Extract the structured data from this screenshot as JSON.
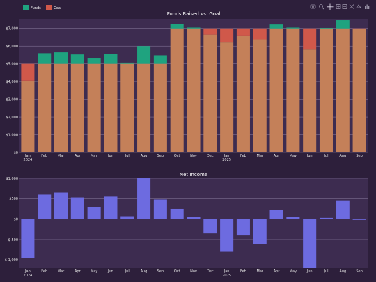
{
  "chart_data": [
    {
      "type": "bar",
      "title": "Funds Raised vs. Goal",
      "categories": [
        "Jan 2024",
        "Feb",
        "Mar",
        "Apr",
        "May",
        "Jun",
        "Jul",
        "Aug",
        "Sep",
        "Oct",
        "Nov",
        "Dec",
        "Jan 2025",
        "Feb",
        "Mar",
        "Apr",
        "May",
        "Jun",
        "Jul",
        "Aug",
        "Sep"
      ],
      "series": [
        {
          "name": "Funds",
          "color": "#1fa37f",
          "values": [
            4050,
            5600,
            5650,
            5530,
            5300,
            5550,
            5070,
            6000,
            5480,
            7250,
            7050,
            6650,
            6200,
            6600,
            6380,
            7220,
            7050,
            5800,
            7030,
            7460,
            6980
          ]
        },
        {
          "name": "Goal",
          "color": "#d0584a",
          "values": [
            5000,
            5000,
            5000,
            5000,
            5000,
            5000,
            5000,
            5000,
            5000,
            7000,
            7000,
            7000,
            7000,
            7000,
            7000,
            7000,
            7000,
            7000,
            7000,
            7000,
            7000
          ]
        }
      ],
      "overlap_color": "#c48059",
      "ylim": [
        0,
        7500
      ],
      "yticks": [
        0,
        1000,
        2000,
        3000,
        4000,
        5000,
        6000,
        7000
      ],
      "ytick_labels": [
        "$0",
        "$1,000",
        "$2,000",
        "$3,000",
        "$4,000",
        "$5,000",
        "$6,000",
        "$7,000"
      ],
      "xlabel": "",
      "ylabel": "",
      "grid": true,
      "legend": "top-left"
    },
    {
      "type": "bar",
      "title": "Net Income",
      "categories": [
        "Jan 2024",
        "Feb",
        "Mar",
        "Apr",
        "May",
        "Jun",
        "Jul",
        "Aug",
        "Sep",
        "Oct",
        "Nov",
        "Dec",
        "Jan 2025",
        "Feb",
        "Mar",
        "Apr",
        "May",
        "Jun",
        "Jul",
        "Aug",
        "Sep"
      ],
      "series": [
        {
          "color": "#6d6be0",
          "values": [
            -950,
            600,
            650,
            530,
            300,
            550,
            70,
            1000,
            480,
            250,
            50,
            -350,
            -800,
            -400,
            -620,
            220,
            50,
            -1200,
            30,
            460,
            -20
          ]
        }
      ],
      "ylim": [
        -1200,
        1000
      ],
      "yticks": [
        -1000,
        -500,
        0,
        500,
        1000
      ],
      "ytick_labels": [
        "$-1,000",
        "$-500",
        "$0",
        "$500",
        "$1,000"
      ],
      "xlabel": "",
      "ylabel": "",
      "grid": true
    }
  ],
  "toolbar": {
    "icons": [
      "camera-icon",
      "zoom-icon",
      "pan-icon",
      "zoom-in-icon",
      "zoom-out-icon",
      "autoscale-icon",
      "reset-axes-icon",
      "plotly-logo-icon"
    ]
  }
}
